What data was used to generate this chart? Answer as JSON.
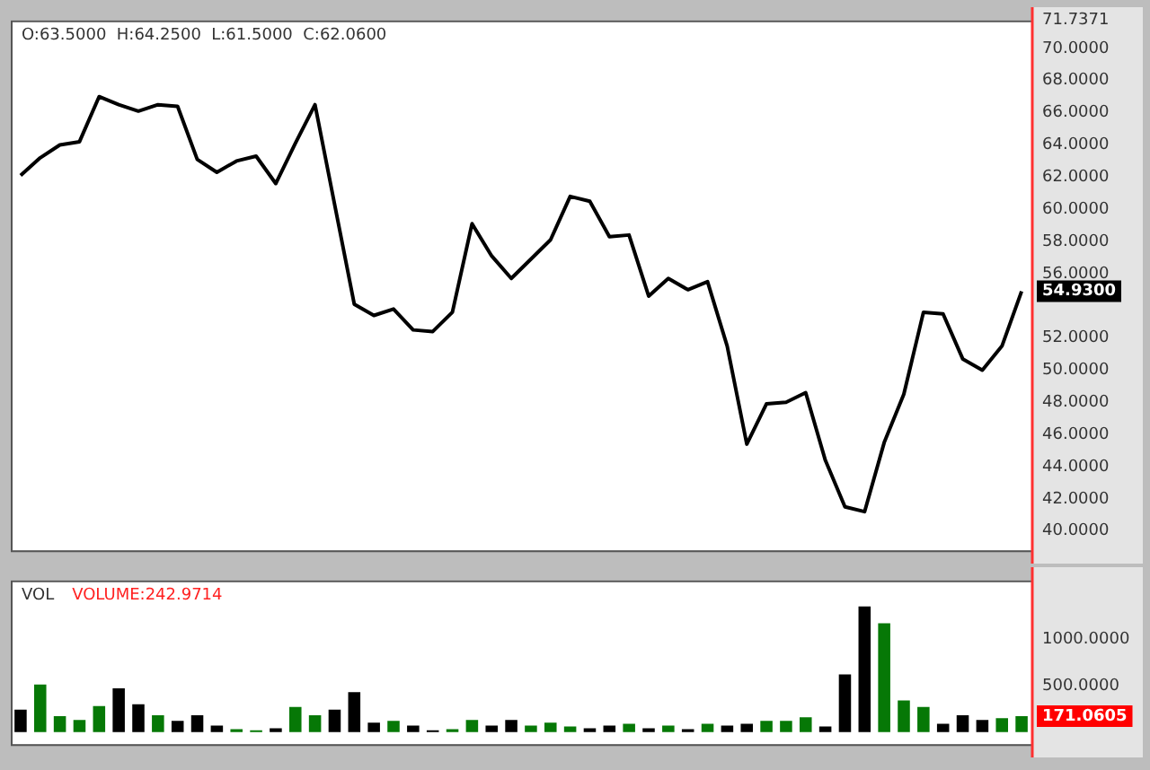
{
  "chart_data": [
    {
      "type": "line",
      "title": "O:63.5000  H:64.2500  L:61.5000  C:62.0600",
      "categories": [
        null,
        null,
        null,
        null,
        null,
        null,
        null,
        null,
        null,
        null,
        null,
        null,
        null,
        null,
        null,
        null,
        null,
        null,
        null,
        null,
        null,
        null,
        null,
        null,
        null,
        null,
        null,
        null,
        null,
        null,
        null,
        null,
        null,
        null,
        null,
        null,
        null,
        null,
        null,
        null,
        null,
        null,
        null,
        null,
        null,
        null,
        null,
        null,
        null,
        null,
        null,
        null
      ],
      "series": [
        {
          "color": "#000000",
          "values": [
            62.1,
            63.2,
            64.0,
            64.2,
            67.0,
            66.5,
            66.1,
            66.5,
            66.4,
            63.1,
            62.3,
            63.0,
            63.3,
            61.6,
            64.1,
            66.5,
            60.3,
            54.1,
            53.4,
            53.8,
            52.5,
            52.4,
            53.6,
            59.1,
            57.1,
            55.7,
            56.9,
            58.1,
            60.8,
            60.5,
            58.3,
            58.4,
            54.6,
            55.7,
            55.0,
            55.5,
            51.5,
            45.4,
            47.9,
            48.0,
            48.6,
            44.4,
            41.5,
            41.2,
            45.5,
            48.5,
            53.6,
            53.5,
            50.7,
            50.0,
            51.5,
            54.9
          ]
        }
      ],
      "ylim": [
        38.8,
        71.7371
      ],
      "yticks": [
        {
          "value": 40,
          "label": "40.0000"
        },
        {
          "value": 42,
          "label": "42.0000"
        },
        {
          "value": 44,
          "label": "44.0000"
        },
        {
          "value": 46,
          "label": "46.0000"
        },
        {
          "value": 48,
          "label": "48.0000"
        },
        {
          "value": 50,
          "label": "50.0000"
        },
        {
          "value": 52,
          "label": "52.0000"
        },
        {
          "value": 56,
          "label": "56.0000"
        },
        {
          "value": 58,
          "label": "58.0000"
        },
        {
          "value": 60,
          "label": "60.0000"
        },
        {
          "value": 62,
          "label": "62.0000"
        },
        {
          "value": 64,
          "label": "64.0000"
        },
        {
          "value": 66,
          "label": "66.0000"
        },
        {
          "value": 68,
          "label": "68.0000"
        },
        {
          "value": 70,
          "label": "70.0000"
        },
        {
          "value": 71.7371,
          "label": "71.7371"
        }
      ],
      "annotations": [
        "54.9300"
      ],
      "tick_labels": "y",
      "legend": false,
      "grid": false,
      "marker": "none"
    },
    {
      "type": "bar",
      "title": "VOL",
      "categories": [
        null,
        null,
        null,
        null,
        null,
        null,
        null,
        null,
        null,
        null,
        null,
        null,
        null,
        null,
        null,
        null,
        null,
        null,
        null,
        null,
        null,
        null,
        null,
        null,
        null,
        null,
        null,
        null,
        null,
        null,
        null,
        null,
        null,
        null,
        null,
        null,
        null,
        null,
        null,
        null,
        null,
        null,
        null,
        null,
        null,
        null,
        null,
        null,
        null,
        null,
        null,
        null
      ],
      "values": [
        240,
        510,
        170,
        130,
        280,
        470,
        300,
        180,
        120,
        180,
        70,
        30,
        20,
        40,
        270,
        180,
        240,
        430,
        100,
        120,
        70,
        20,
        30,
        130,
        70,
        130,
        70,
        100,
        60,
        40,
        70,
        90,
        40,
        70,
        30,
        90,
        70,
        90,
        120,
        120,
        160,
        60,
        620,
        1350,
        1170,
        340,
        270,
        90,
        180,
        130,
        150,
        170
      ],
      "colors": [
        "#000000",
        "#067806",
        "#067806",
        "#067806",
        "#067806",
        "#000000",
        "#000000",
        "#067806",
        "#000000",
        "#000000",
        "#000000",
        "#067806",
        "#067806",
        "#000000",
        "#067806",
        "#067806",
        "#000000",
        "#000000",
        "#000000",
        "#067806",
        "#000000",
        "#000000",
        "#067806",
        "#067806",
        "#000000",
        "#000000",
        "#067806",
        "#067806",
        "#067806",
        "#000000",
        "#000000",
        "#067806",
        "#000000",
        "#067806",
        "#000000",
        "#067806",
        "#000000",
        "#000000",
        "#067806",
        "#067806",
        "#067806",
        "#000000",
        "#000000",
        "#000000",
        "#067806",
        "#067806",
        "#067806",
        "#000000",
        "#000000",
        "#000000",
        "#067806",
        "#067806"
      ],
      "ylim": [
        -130,
        1630
      ],
      "yticks": [
        {
          "value": 500,
          "label": "500.0000"
        },
        {
          "value": 1000,
          "label": "1000.0000"
        }
      ],
      "annotations": [
        "VOLUME:242.9714",
        "171.0605"
      ],
      "tick_labels": "y",
      "legend": false,
      "grid": false
    }
  ]
}
